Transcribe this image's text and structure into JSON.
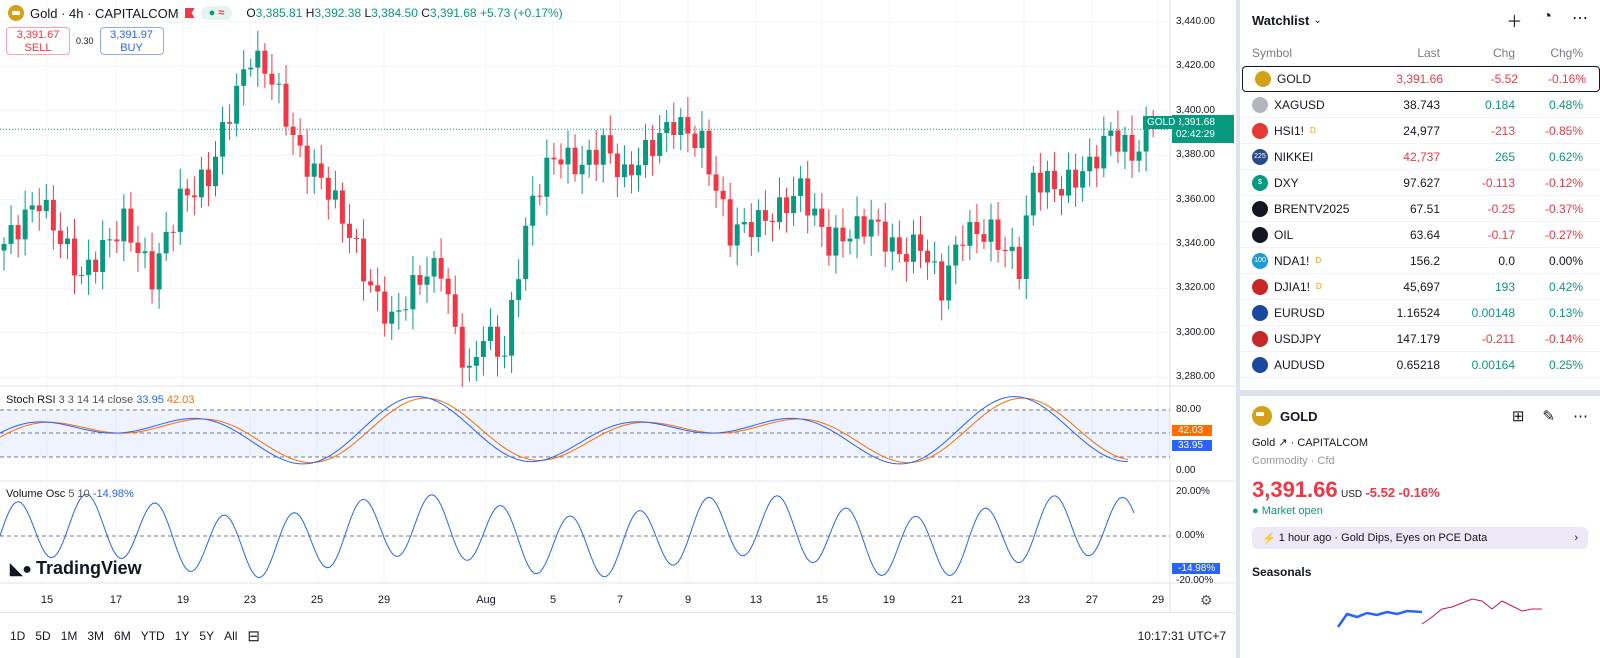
{
  "header": {
    "symbol": "Gold · 4h · CAPITALCOM",
    "open": "3,385.81",
    "high": "3,392.38",
    "low": "3,384.50",
    "close": "3,391.68",
    "change": "+5.73 (+0.17%)"
  },
  "trade": {
    "sell_price": "3,391.67",
    "sell_label": "SELL",
    "spread": "0.30",
    "buy_price": "3,391.97",
    "buy_label": "BUY"
  },
  "price_axis": [
    "3,440.00",
    "3,420.00",
    "3,400.00",
    "3,380.00",
    "3,360.00",
    "3,340.00",
    "3,320.00",
    "3,300.00",
    "3,280.00"
  ],
  "last_price": {
    "symbol": "GOLD",
    "price": "3,391.68",
    "countdown": "02:42:29"
  },
  "stoch": {
    "label": "Stoch RSI",
    "params": "3 3 14 14 close",
    "k": "33.95",
    "d": "42.03",
    "axis": [
      "80.00",
      "0.00"
    ]
  },
  "volosc": {
    "label": "Volume Osc",
    "params": "5 10",
    "value": "-14.98%",
    "axis": [
      "20.00%",
      "0.00%",
      "-20.00%"
    ]
  },
  "time_axis": [
    "15",
    "17",
    "19",
    "23",
    "25",
    "29",
    "Aug",
    "5",
    "7",
    "9",
    "13",
    "15",
    "19",
    "21",
    "23",
    "27",
    "29"
  ],
  "brand": "TradingView",
  "ranges": [
    "1D",
    "5D",
    "1M",
    "3M",
    "6M",
    "YTD",
    "1Y",
    "5Y",
    "All"
  ],
  "clock": "10:17:31 UTC+7",
  "chart_data": {
    "type": "candlestick",
    "ylim": [
      3270,
      3445
    ],
    "keypoints": [
      [
        0,
        3340
      ],
      [
        5,
        3360
      ],
      [
        11,
        3325
      ],
      [
        17,
        3350
      ],
      [
        21,
        3325
      ],
      [
        25,
        3360
      ],
      [
        29,
        3370
      ],
      [
        32,
        3400
      ],
      [
        35,
        3425
      ],
      [
        38,
        3415
      ],
      [
        42,
        3380
      ],
      [
        46,
        3365
      ],
      [
        49,
        3345
      ],
      [
        52,
        3320
      ],
      [
        55,
        3305
      ],
      [
        59,
        3325
      ],
      [
        62,
        3330
      ],
      [
        64,
        3300
      ],
      [
        66,
        3280
      ],
      [
        68,
        3300
      ],
      [
        71,
        3290
      ],
      [
        73,
        3330
      ],
      [
        75,
        3360
      ],
      [
        78,
        3380
      ],
      [
        82,
        3375
      ],
      [
        85,
        3385
      ],
      [
        88,
        3370
      ],
      [
        92,
        3385
      ],
      [
        95,
        3395
      ],
      [
        99,
        3385
      ],
      [
        101,
        3365
      ],
      [
        103,
        3345
      ],
      [
        107,
        3350
      ],
      [
        110,
        3355
      ],
      [
        113,
        3365
      ],
      [
        117,
        3340
      ],
      [
        123,
        3350
      ],
      [
        127,
        3335
      ],
      [
        130,
        3340
      ],
      [
        133,
        3320
      ],
      [
        136,
        3345
      ],
      [
        140,
        3345
      ],
      [
        144,
        3330
      ],
      [
        146,
        3370
      ],
      [
        150,
        3365
      ],
      [
        154,
        3375
      ],
      [
        157,
        3390
      ],
      [
        160,
        3380
      ],
      [
        163,
        3392
      ]
    ]
  },
  "watchlist": {
    "title": "Watchlist",
    "headers": [
      "Symbol",
      "Last",
      "Chg",
      "Chg%"
    ],
    "rows": [
      {
        "sym": "GOLD",
        "last": "3,391.66",
        "chg": "-5.52",
        "pct": "-0.16%",
        "dir": "dn",
        "icon": "#d4a017",
        "it": ""
      },
      {
        "sym": "XAGUSD",
        "last": "38.743",
        "chg": "0.184",
        "pct": "0.48%",
        "dir": "up",
        "icon": "#b2b5be",
        "it": ""
      },
      {
        "sym": "HSI1!",
        "last": "24,977",
        "chg": "-213",
        "pct": "-0.85%",
        "dir": "dn",
        "icon": "#e53935",
        "it": "",
        "d": "D"
      },
      {
        "sym": "NIKKEI",
        "last": "42,737",
        "chg": "265",
        "pct": "0.62%",
        "dir": "up",
        "icon": "#2a4a8a",
        "it": "225"
      },
      {
        "sym": "DXY",
        "last": "97.627",
        "chg": "-0.113",
        "pct": "-0.12%",
        "dir": "dn",
        "icon": "#089981",
        "it": "$"
      },
      {
        "sym": "BRENTV2025",
        "last": "67.51",
        "chg": "-0.25",
        "pct": "-0.37%",
        "dir": "dn",
        "icon": "#131722",
        "it": ""
      },
      {
        "sym": "OIL",
        "last": "63.64",
        "chg": "-0.17",
        "pct": "-0.27%",
        "dir": "dn",
        "icon": "#131722",
        "it": ""
      },
      {
        "sym": "NDA1!",
        "last": "156.2",
        "chg": "0.0",
        "pct": "0.00%",
        "dir": "flat",
        "icon": "#1e9bd7",
        "it": "100",
        "d": "D"
      },
      {
        "sym": "DJIA1!",
        "last": "45,697",
        "chg": "193",
        "pct": "0.42%",
        "dir": "up",
        "icon": "#c62828",
        "it": "",
        "d": "D"
      },
      {
        "sym": "EURUSD",
        "last": "1.16524",
        "chg": "0.00148",
        "pct": "0.13%",
        "dir": "up",
        "icon": "#1a47a0",
        "it": ""
      },
      {
        "sym": "USDJPY",
        "last": "147.179",
        "chg": "-0.211",
        "pct": "-0.14%",
        "dir": "dn",
        "icon": "#c62828",
        "it": ""
      },
      {
        "sym": "AUDUSD",
        "last": "0.65218",
        "chg": "0.00164",
        "pct": "0.25%",
        "dir": "up",
        "icon": "#1a47a0",
        "it": ""
      }
    ]
  },
  "details": {
    "symbol": "GOLD",
    "name": "Gold",
    "exchange": "CAPITALCOM",
    "type": "Commodity · Cfd",
    "price": "3,391.66",
    "currency": "USD",
    "chg": "-5.52",
    "pct": "-0.16%",
    "status": "Market open",
    "news_time": "1 hour ago",
    "news": "Gold Dips, Eyes on PCE Data",
    "seasonals": "Seasonals"
  },
  "colors": {
    "up": "#089981",
    "down": "#f23645",
    "accent": "#2962ff"
  }
}
